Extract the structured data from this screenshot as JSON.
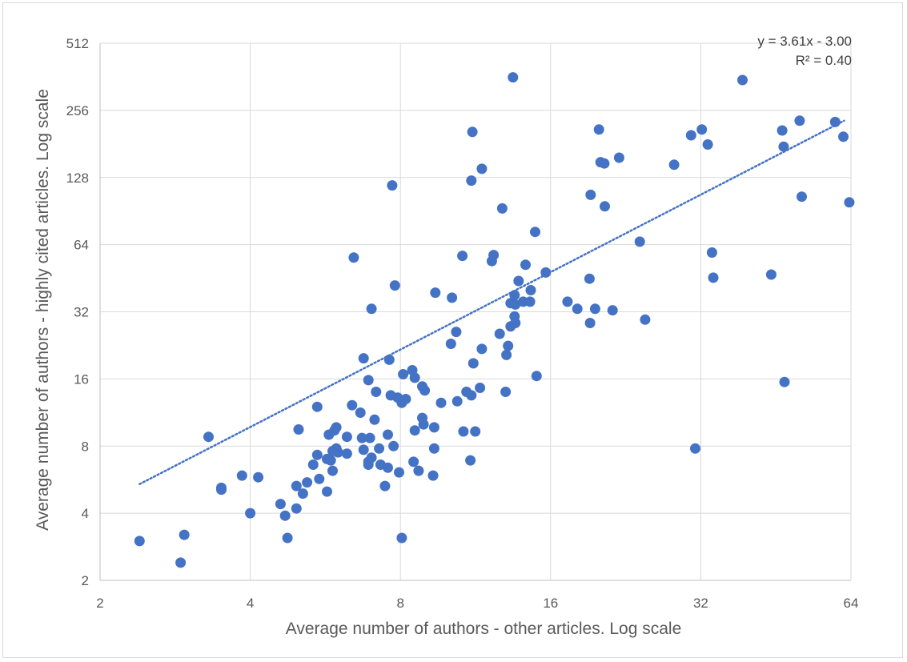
{
  "chart_data": {
    "type": "scatter",
    "xlabel": "Average number of authors - other articles. Log scale",
    "ylabel": "Average number of authors - highly cited articles. Log scale",
    "x_scale": "log2",
    "y_scale": "log2",
    "xlim": [
      2,
      64
    ],
    "ylim": [
      2,
      512
    ],
    "x_ticks": [
      "2",
      "4",
      "8",
      "16",
      "32",
      "64"
    ],
    "y_ticks": [
      "2",
      "4",
      "8",
      "16",
      "32",
      "64",
      "128",
      "256",
      "512"
    ],
    "grid": true,
    "marker_color": "#4472c4",
    "trendline": {
      "equation": "y = 3.61x - 3.00",
      "r2": "R² = 0.40",
      "style": "dotted",
      "color": "#4472c4",
      "from": [
        2.4,
        5.4
      ],
      "to": [
        62,
        230
      ]
    },
    "points": [
      [
        2.4,
        3.0
      ],
      [
        2.95,
        3.2
      ],
      [
        2.9,
        2.4
      ],
      [
        3.3,
        8.8
      ],
      [
        3.5,
        5.1
      ],
      [
        3.5,
        5.2
      ],
      [
        3.85,
        5.9
      ],
      [
        4.0,
        4.0
      ],
      [
        4.15,
        5.8
      ],
      [
        4.6,
        4.4
      ],
      [
        4.7,
        3.9
      ],
      [
        4.75,
        3.1
      ],
      [
        4.95,
        5.3
      ],
      [
        4.95,
        4.2
      ],
      [
        5.0,
        9.5
      ],
      [
        5.1,
        4.9
      ],
      [
        5.2,
        5.5
      ],
      [
        5.35,
        6.6
      ],
      [
        5.5,
        5.7
      ],
      [
        5.45,
        7.3
      ],
      [
        5.45,
        12.0
      ],
      [
        5.7,
        5.0
      ],
      [
        5.75,
        9.0
      ],
      [
        5.7,
        7.0
      ],
      [
        5.8,
        6.9
      ],
      [
        5.85,
        7.6
      ],
      [
        5.85,
        6.2
      ],
      [
        5.9,
        9.4
      ],
      [
        5.95,
        7.8
      ],
      [
        5.95,
        9.7
      ],
      [
        6.0,
        7.5
      ],
      [
        6.25,
        8.8
      ],
      [
        6.25,
        7.4
      ],
      [
        6.4,
        12.2
      ],
      [
        6.45,
        56.0
      ],
      [
        6.65,
        11.3
      ],
      [
        6.7,
        8.7
      ],
      [
        6.75,
        7.7
      ],
      [
        6.75,
        19.8
      ],
      [
        6.9,
        6.6
      ],
      [
        6.9,
        6.8
      ],
      [
        6.9,
        15.8
      ],
      [
        6.95,
        8.7
      ],
      [
        7.0,
        7.1
      ],
      [
        7.0,
        33.0
      ],
      [
        7.1,
        10.5
      ],
      [
        7.15,
        14.0
      ],
      [
        7.25,
        7.8
      ],
      [
        7.3,
        6.6
      ],
      [
        7.45,
        5.3
      ],
      [
        7.55,
        6.4
      ],
      [
        7.55,
        9.0
      ],
      [
        7.6,
        19.5
      ],
      [
        7.65,
        13.5
      ],
      [
        7.75,
        8.0
      ],
      [
        7.7,
        118.0
      ],
      [
        7.8,
        42.0
      ],
      [
        7.9,
        13.2
      ],
      [
        7.95,
        6.1
      ],
      [
        8.05,
        12.5
      ],
      [
        8.05,
        3.1
      ],
      [
        8.1,
        16.8
      ],
      [
        8.2,
        13.0
      ],
      [
        8.45,
        17.5
      ],
      [
        8.5,
        6.8
      ],
      [
        8.55,
        9.4
      ],
      [
        8.55,
        16.2
      ],
      [
        8.7,
        6.2
      ],
      [
        8.85,
        14.8
      ],
      [
        8.85,
        10.7
      ],
      [
        8.9,
        10.0
      ],
      [
        8.95,
        14.2
      ],
      [
        9.3,
        5.9
      ],
      [
        9.35,
        7.8
      ],
      [
        9.35,
        9.7
      ],
      [
        9.4,
        39.0
      ],
      [
        9.65,
        12.5
      ],
      [
        10.1,
        23.0
      ],
      [
        10.15,
        37.0
      ],
      [
        10.35,
        26.0
      ],
      [
        10.4,
        12.7
      ],
      [
        10.65,
        57.0
      ],
      [
        10.7,
        9.3
      ],
      [
        10.85,
        14.0
      ],
      [
        11.05,
        6.9
      ],
      [
        11.1,
        13.5
      ],
      [
        11.15,
        205.0
      ],
      [
        11.1,
        124.0
      ],
      [
        11.2,
        18.8
      ],
      [
        11.3,
        9.3
      ],
      [
        11.55,
        14.6
      ],
      [
        11.65,
        140.0
      ],
      [
        11.65,
        21.8
      ],
      [
        12.2,
        54.0
      ],
      [
        12.3,
        57.5
      ],
      [
        12.65,
        25.5
      ],
      [
        12.8,
        93.0
      ],
      [
        13.0,
        14.0
      ],
      [
        13.05,
        20.5
      ],
      [
        13.15,
        22.5
      ],
      [
        13.3,
        27.5
      ],
      [
        13.3,
        35.0
      ],
      [
        13.45,
        360.0
      ],
      [
        13.55,
        38.0
      ],
      [
        13.55,
        30.5
      ],
      [
        13.6,
        28.5
      ],
      [
        13.6,
        34.5
      ],
      [
        13.8,
        44.0
      ],
      [
        14.1,
        35.5
      ],
      [
        14.25,
        52.0
      ],
      [
        14.55,
        35.5
      ],
      [
        14.6,
        40.0
      ],
      [
        14.9,
        73.0
      ],
      [
        15.0,
        16.5
      ],
      [
        15.65,
        48.0
      ],
      [
        17.3,
        35.5
      ],
      [
        18.1,
        33.0
      ],
      [
        19.15,
        45.0
      ],
      [
        19.2,
        28.5
      ],
      [
        19.25,
        107.0
      ],
      [
        19.65,
        33.0
      ],
      [
        20.0,
        210.0
      ],
      [
        20.15,
        150.0
      ],
      [
        20.5,
        148.0
      ],
      [
        20.55,
        95.0
      ],
      [
        21.3,
        32.5
      ],
      [
        21.95,
        157.0
      ],
      [
        24.15,
        66.0
      ],
      [
        24.75,
        29.5
      ],
      [
        28.3,
        146.0
      ],
      [
        30.6,
        198.0
      ],
      [
        31.2,
        7.8
      ],
      [
        32.15,
        210.0
      ],
      [
        33.05,
        180.0
      ],
      [
        33.7,
        59.0
      ],
      [
        33.9,
        45.5
      ],
      [
        38.8,
        350.0
      ],
      [
        44.3,
        47.0
      ],
      [
        46.6,
        208.0
      ],
      [
        46.9,
        176.0
      ],
      [
        47.1,
        15.5
      ],
      [
        50.5,
        230.0
      ],
      [
        51.0,
        105.0
      ],
      [
        59.5,
        227.0
      ],
      [
        61.8,
        195.0
      ],
      [
        63.5,
        99.0
      ]
    ]
  }
}
